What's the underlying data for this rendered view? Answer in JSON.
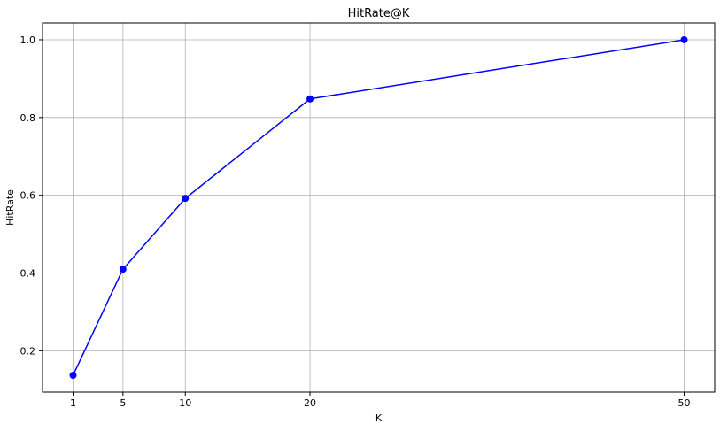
{
  "chart_data": {
    "type": "line",
    "title": "HitRate@K",
    "xlabel": "K",
    "ylabel": "HitRate",
    "x": [
      1,
      5,
      10,
      20,
      50
    ],
    "series": [
      {
        "values": [
          0.137,
          0.41,
          0.592,
          0.848,
          1.0
        ],
        "color": "#0000ff",
        "marker": "circle"
      }
    ],
    "xticks": [
      1,
      5,
      10,
      20,
      50
    ],
    "xtick_labels": [
      "1",
      "5",
      "10",
      "20",
      "50"
    ],
    "yticks": [
      0.2,
      0.4,
      0.6,
      0.8,
      1.0
    ],
    "ytick_labels": [
      "0.2",
      "0.4",
      "0.6",
      "0.8",
      "1.0"
    ],
    "xlim": [
      -1.45,
      52.45
    ],
    "ylim": [
      0.0938,
      1.0432
    ],
    "grid": true,
    "grid_color": "#b0b0b0"
  }
}
